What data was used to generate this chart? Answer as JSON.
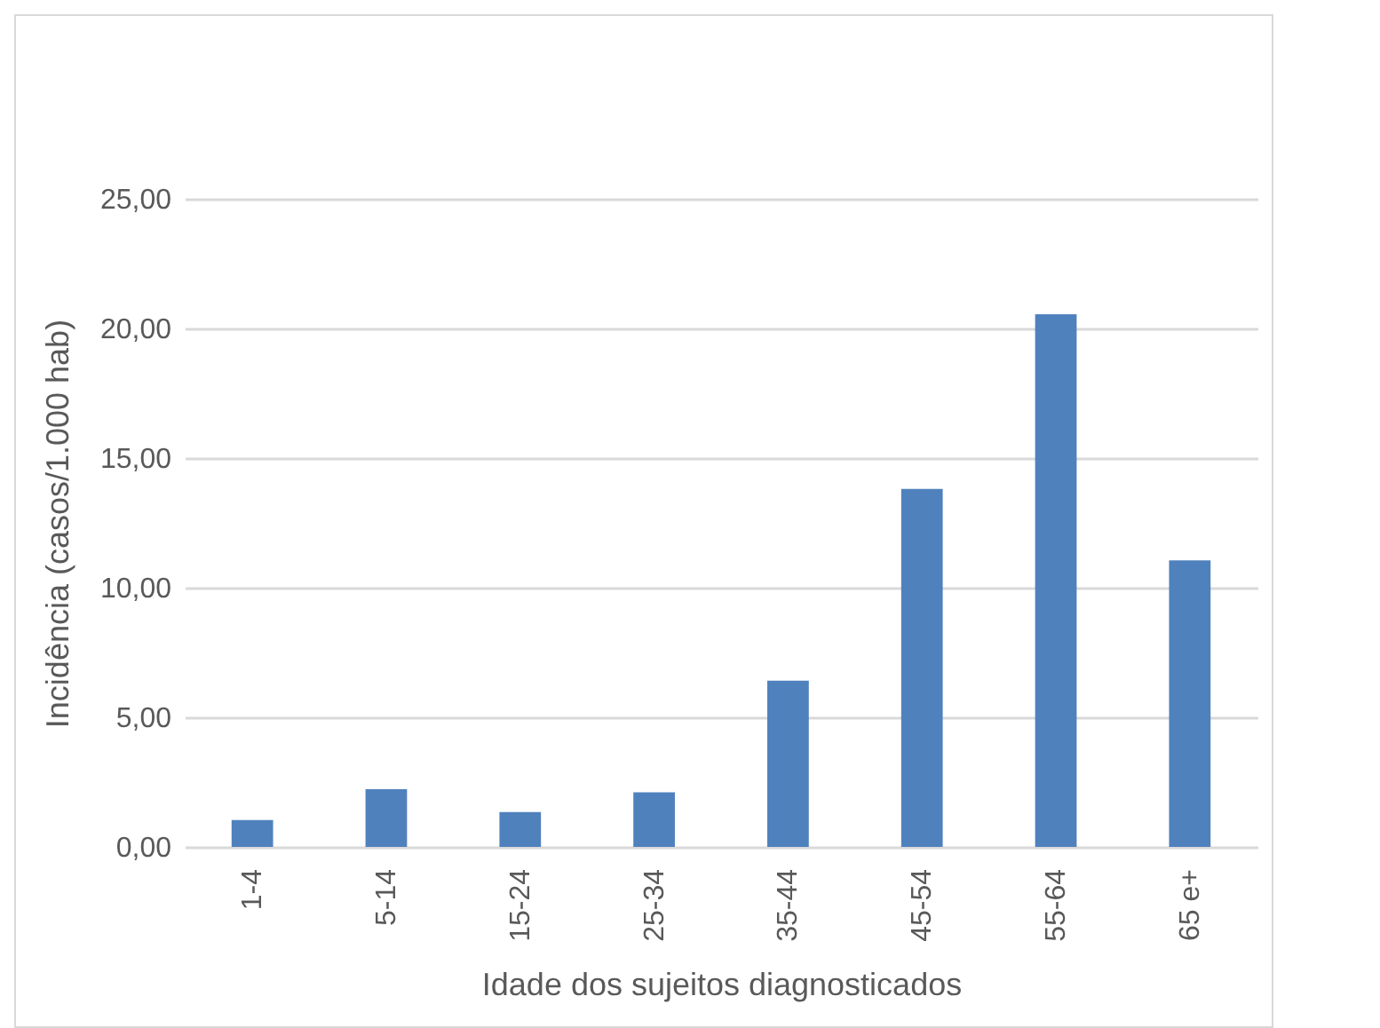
{
  "chart_data": {
    "type": "bar",
    "xlabel": "Idade dos sujeitos diagnosticados",
    "ylabel": "Incidência (casos/1.000 hab)",
    "categories": [
      "1-4",
      "5-14",
      "15-24",
      "25-34",
      "35-44",
      "45-54",
      "55-64",
      "65 e+"
    ],
    "values": [
      1.04,
      2.23,
      1.34,
      2.11,
      6.41,
      13.81,
      20.55,
      11.05
    ],
    "color": "#4f81bd",
    "ylim": [
      0,
      25
    ],
    "yticks": [
      {
        "value": 0,
        "label": "0,00"
      },
      {
        "value": 5,
        "label": "5,00"
      },
      {
        "value": 10,
        "label": "10,00"
      },
      {
        "value": 15,
        "label": "15,00"
      },
      {
        "value": 20,
        "label": "20,00"
      },
      {
        "value": 25,
        "label": "25,00"
      }
    ],
    "grid": "y"
  }
}
